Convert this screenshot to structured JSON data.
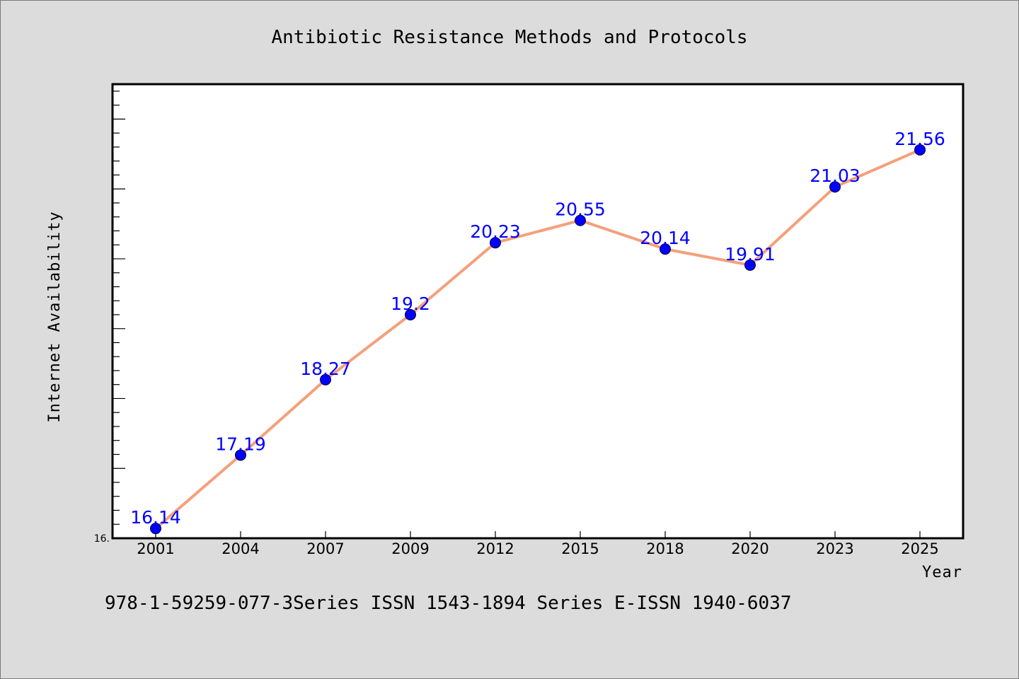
{
  "chart_data": {
    "type": "line",
    "title": "Antibiotic Resistance Methods and Protocols",
    "xlabel": "Year",
    "ylabel": "Internet Availability",
    "categories": [
      "2001",
      "2004",
      "2007",
      "2009",
      "2012",
      "2015",
      "2018",
      "2020",
      "2023",
      "2025"
    ],
    "series": [
      {
        "values": [
          16.14,
          17.19,
          18.27,
          19.2,
          20.23,
          20.55,
          20.14,
          19.91,
          21.03,
          21.56
        ],
        "data_labels": [
          "16.14",
          "17.19",
          "18.27",
          "19.2",
          "20.23",
          "20.55",
          "20.14",
          "19.91",
          "21.03",
          "21.56"
        ],
        "line_color": "#f4a07a",
        "marker_color": "#0000ff"
      }
    ],
    "ylim": [
      16.0,
      22.5
    ],
    "y_tick_labels": [
      "16."
    ],
    "grid": false,
    "legend": "none"
  },
  "footer": "978-1-59259-077-3Series ISSN 1543-1894 Series E-ISSN 1940-6037",
  "colors": {
    "background": "#dcdcdc",
    "plot_background": "#ffffff",
    "line": "#f4a07a",
    "marker": "#0000ff",
    "data_label": "#0000ff"
  }
}
